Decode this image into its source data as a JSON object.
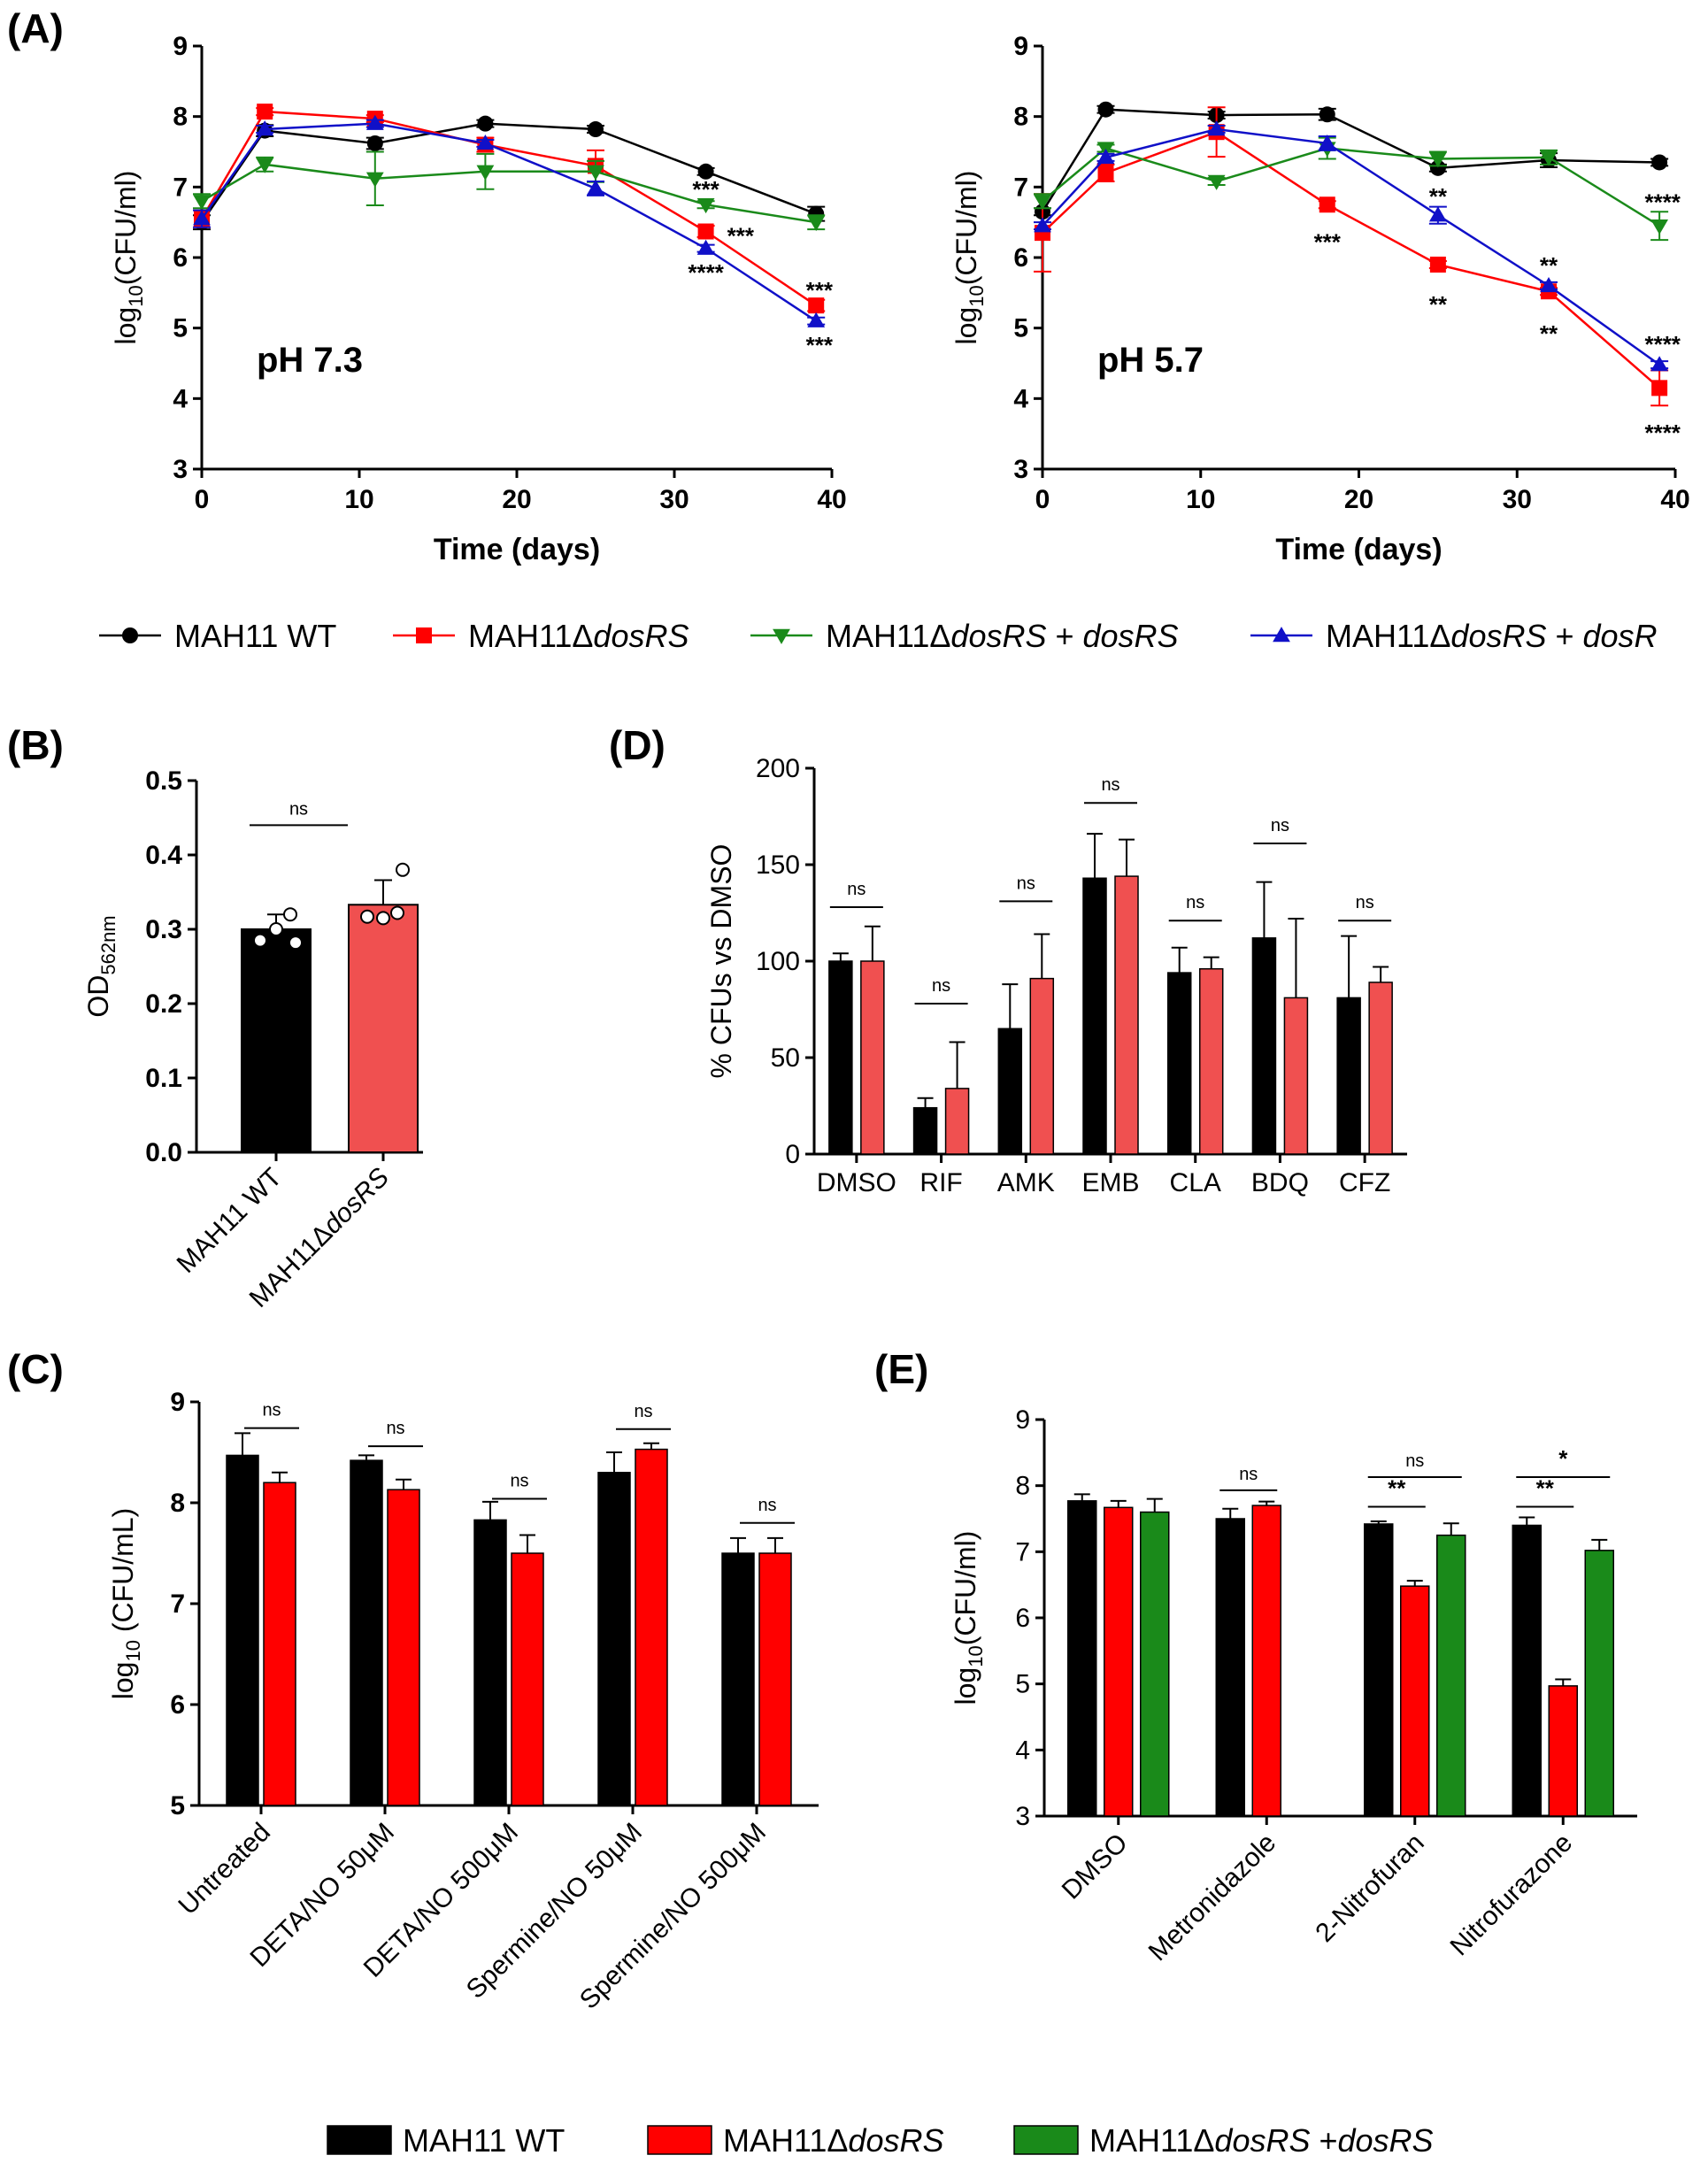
{
  "colors": {
    "wt": "#000000",
    "ko": "#ff0000",
    "kodosRS": "#1a8a1a",
    "kodosR": "#1010c8",
    "koLight": "#f05050"
  },
  "chart_data": [
    {
      "id": "A1",
      "panel_label": "(A)",
      "type": "line",
      "annotation": "pH 7.3",
      "xlabel": "Time (days)",
      "ylabel": "log10(CFU/ml)",
      "ylabel_main": "log",
      "ylabel_sub": "10",
      "ylabel_rest": "(CFU/ml)",
      "xlim": [
        0,
        40
      ],
      "ylim": [
        3,
        9
      ],
      "xticks": [
        "0",
        "10",
        "20",
        "30",
        "40"
      ],
      "yticks": [
        "3",
        "4",
        "5",
        "6",
        "7",
        "8",
        "9"
      ],
      "x": [
        0,
        4,
        11,
        18,
        25,
        32,
        39
      ],
      "series": [
        {
          "name": "MAH11 WT",
          "key": "wt",
          "marker": "circle",
          "values": [
            6.5,
            7.8,
            7.62,
            7.9,
            7.82,
            7.22,
            6.62
          ],
          "err": [
            0.1,
            0.08,
            0.08,
            0.05,
            0.05,
            0.05,
            0.1
          ]
        },
        {
          "name": "MAH11ΔdosRS",
          "key": "ko",
          "marker": "square",
          "values": [
            6.55,
            8.07,
            7.97,
            7.6,
            7.3,
            6.37,
            5.32
          ],
          "err": [
            0.12,
            0.05,
            0.05,
            0.1,
            0.22,
            0.08,
            0.08
          ]
        },
        {
          "name": "MAH11ΔdosRS + dosRS",
          "key": "kodosRS",
          "marker": "triangle-down",
          "values": [
            6.8,
            7.32,
            7.12,
            7.22,
            7.22,
            6.75,
            6.5
          ],
          "err": [
            0.1,
            0.1,
            0.38,
            0.25,
            0.15,
            0.05,
            0.1
          ]
        },
        {
          "name": "MAH11ΔdosRS + dosR",
          "key": "kodosR",
          "marker": "triangle-up",
          "values": [
            6.55,
            7.82,
            7.9,
            7.62,
            6.98,
            6.13,
            5.1
          ],
          "err": [
            0.12,
            0.05,
            0.05,
            0.05,
            0.1,
            0.05,
            0.05
          ]
        }
      ],
      "significance": [
        {
          "x": 32,
          "y": 6.98,
          "text": "***",
          "key": "kodosRS"
        },
        {
          "x": 34.2,
          "y": 6.32,
          "text": "***",
          "key": "ko"
        },
        {
          "x": 32,
          "y": 5.8,
          "text": "****",
          "key": "kodosR"
        },
        {
          "x": 39.2,
          "y": 5.55,
          "text": "***",
          "key": "ko"
        },
        {
          "x": 39.2,
          "y": 4.77,
          "text": "***",
          "key": "kodosR"
        }
      ]
    },
    {
      "id": "A2",
      "type": "line",
      "annotation": "pH 5.7",
      "xlabel": "Time (days)",
      "ylabel": "log10(CFU/ml)",
      "ylabel_main": "log",
      "ylabel_sub": "10",
      "ylabel_rest": "(CFU/ml)",
      "xlim": [
        0,
        40
      ],
      "ylim": [
        3,
        9
      ],
      "xticks": [
        "0",
        "10",
        "20",
        "30",
        "40"
      ],
      "yticks": [
        "3",
        "4",
        "5",
        "6",
        "7",
        "8",
        "9"
      ],
      "x": [
        0,
        4,
        11,
        18,
        25,
        32,
        39
      ],
      "series": [
        {
          "name": "MAH11 WT",
          "key": "wt",
          "marker": "circle",
          "values": [
            6.65,
            8.1,
            8.02,
            8.03,
            7.27,
            7.38,
            7.35
          ],
          "err": [
            0.05,
            0.05,
            0.05,
            0.08,
            0.05,
            0.1,
            0.05
          ]
        },
        {
          "name": "MAH11ΔdosRS",
          "key": "ko",
          "marker": "square",
          "values": [
            6.35,
            7.2,
            7.78,
            6.75,
            5.9,
            5.52,
            4.15
          ],
          "err": [
            0.55,
            0.12,
            0.35,
            0.05,
            0.05,
            0.05,
            0.25
          ]
        },
        {
          "name": "MAH11ΔdosRS + dosRS",
          "key": "kodosRS",
          "marker": "triangle-down",
          "values": [
            6.8,
            7.55,
            7.08,
            7.55,
            7.4,
            7.42,
            6.45
          ],
          "err": [
            0.1,
            0.05,
            0.05,
            0.15,
            0.1,
            0.1,
            0.2
          ]
        },
        {
          "name": "MAH11ΔdosRS + dosR",
          "key": "kodosR",
          "marker": "triangle-up",
          "values": [
            6.45,
            7.42,
            7.82,
            7.62,
            6.6,
            5.6,
            4.48
          ],
          "err": [
            0.05,
            0.05,
            0.05,
            0.1,
            0.12,
            0.05,
            0.05
          ]
        }
      ],
      "significance": [
        {
          "x": 25,
          "y": 6.88,
          "text": "**",
          "key": "kodosR"
        },
        {
          "x": 39.2,
          "y": 6.8,
          "text": "****",
          "key": "kodosRS"
        },
        {
          "x": 18,
          "y": 6.23,
          "text": "***",
          "key": "ko"
        },
        {
          "x": 32,
          "y": 5.9,
          "text": "**",
          "key": "kodosR"
        },
        {
          "x": 25,
          "y": 5.35,
          "text": "**",
          "key": "ko"
        },
        {
          "x": 32,
          "y": 4.93,
          "text": "**",
          "key": "ko"
        },
        {
          "x": 39.2,
          "y": 4.78,
          "text": "****",
          "key": "kodosR"
        },
        {
          "x": 39.2,
          "y": 3.53,
          "text": "****",
          "key": "ko"
        }
      ]
    },
    {
      "id": "B",
      "panel_label": "(B)",
      "type": "bar",
      "ylabel": "OD562nm",
      "ylabel_main": "OD",
      "ylabel_sub": "562nm",
      "ylim": [
        0,
        0.5
      ],
      "yticks": [
        "0.0",
        "0.1",
        "0.2",
        "0.3",
        "0.4",
        "0.5"
      ],
      "categories": [
        "MAH11 WT",
        "MAH11ΔdosRS"
      ],
      "series": [
        {
          "name": "bars",
          "values": [
            0.3,
            0.333
          ],
          "err": [
            0.02,
            0.033
          ],
          "keys": [
            "wt",
            "koLight"
          ]
        }
      ],
      "points": [
        [
          0.3,
          0.32,
          0.285,
          0.282
        ],
        [
          0.315,
          0.322,
          0.317,
          0.38
        ]
      ],
      "significance": [
        {
          "from": 0,
          "to": 1,
          "y": 0.44,
          "text": "ns"
        }
      ]
    },
    {
      "id": "D",
      "panel_label": "(D)",
      "type": "bar",
      "ylabel": "% CFUs vs DMSO",
      "ylim": [
        0,
        200
      ],
      "yticks": [
        "0",
        "50",
        "100",
        "150",
        "200"
      ],
      "categories": [
        "DMSO",
        "RIF",
        "AMK",
        "EMB",
        "CLA",
        "BDQ",
        "CFZ"
      ],
      "series": [
        {
          "name": "MAH11 WT",
          "key": "wt",
          "values": [
            100,
            24,
            65,
            143,
            94,
            112,
            81
          ],
          "err": [
            4,
            5,
            23,
            23,
            13,
            29,
            32
          ]
        },
        {
          "name": "MAH11ΔdosRS",
          "key": "koLight",
          "values": [
            100,
            34,
            91,
            144,
            96,
            81,
            89
          ],
          "err": [
            18,
            24,
            23,
            19,
            6,
            41,
            8
          ]
        }
      ],
      "significance": [
        {
          "cat": 0,
          "y": 128,
          "text": "ns"
        },
        {
          "cat": 1,
          "y": 78,
          "text": "ns"
        },
        {
          "cat": 2,
          "y": 131,
          "text": "ns"
        },
        {
          "cat": 3,
          "y": 182,
          "text": "ns"
        },
        {
          "cat": 4,
          "y": 121,
          "text": "ns"
        },
        {
          "cat": 5,
          "y": 161,
          "text": "ns"
        },
        {
          "cat": 6,
          "y": 121,
          "text": "ns"
        }
      ]
    },
    {
      "id": "C",
      "panel_label": "(C)",
      "type": "bar",
      "ylabel": "log10 (CFU/mL)",
      "ylabel_main": "log",
      "ylabel_sub": "10",
      "ylabel_rest": " (CFU/mL)",
      "ylim": [
        5,
        9
      ],
      "yticks": [
        "5",
        "6",
        "7",
        "8",
        "9"
      ],
      "categories": [
        "Untreated",
        "DETA/NO 50μM",
        "DETA/NO 500μM",
        "Spermine/NO 50μM",
        "Spermine/NO 500μM"
      ],
      "series": [
        {
          "name": "MAH11 WT",
          "key": "wt",
          "values": [
            8.47,
            8.42,
            7.83,
            8.3,
            7.5
          ],
          "err": [
            0.22,
            0.05,
            0.18,
            0.2,
            0.15
          ]
        },
        {
          "name": "MAH11ΔdosRS",
          "key": "ko",
          "values": [
            8.2,
            8.13,
            7.5,
            8.53,
            7.5
          ],
          "err": [
            0.1,
            0.1,
            0.18,
            0.06,
            0.15
          ]
        }
      ],
      "significance": [
        {
          "cat": 0,
          "y": 8.74,
          "text": "ns"
        },
        {
          "cat": 1,
          "y": 8.56,
          "text": "ns"
        },
        {
          "cat": 2,
          "y": 8.04,
          "text": "ns"
        },
        {
          "cat": 3,
          "y": 8.73,
          "text": "ns"
        },
        {
          "cat": 4,
          "y": 7.8,
          "text": "ns"
        }
      ]
    },
    {
      "id": "E",
      "panel_label": "(E)",
      "type": "bar",
      "ylabel": "log10(CFU/ml)",
      "ylabel_main": "log",
      "ylabel_sub": "10",
      "ylabel_rest": "(CFU/ml)",
      "ylim": [
        3,
        9
      ],
      "yticks": [
        "3",
        "4",
        "5",
        "6",
        "7",
        "8",
        "9"
      ],
      "categories": [
        "DMSO",
        "Metronidazole",
        "2-Nitrofuran",
        "Nitrofurazone"
      ],
      "series": [
        {
          "name": "MAH11 WT",
          "key": "wt",
          "values": [
            7.77,
            7.5,
            7.42,
            7.4
          ],
          "err": [
            0.1,
            0.15,
            0.04,
            0.12
          ]
        },
        {
          "name": "MAH11ΔdosRS",
          "key": "ko",
          "values": [
            7.67,
            7.7,
            6.48,
            4.97
          ],
          "err": [
            0.1,
            0.06,
            0.08,
            0.1
          ]
        },
        {
          "name": "MAH11ΔdosRS +dosRS",
          "key": "kodosRS",
          "values": [
            7.6,
            null,
            7.25,
            7.02
          ],
          "err": [
            0.2,
            null,
            0.18,
            0.16
          ]
        }
      ],
      "significance": [
        {
          "cat": 1,
          "from": 0,
          "to": 1,
          "y": 7.93,
          "text": "ns"
        },
        {
          "cat": 2,
          "from": 0,
          "to": 1,
          "y": 7.68,
          "text": "**"
        },
        {
          "cat": 2,
          "from": 0,
          "to": 2,
          "y": 8.13,
          "text": "ns"
        },
        {
          "cat": 3,
          "from": 0,
          "to": 1,
          "y": 7.68,
          "text": "**"
        },
        {
          "cat": 3,
          "from": 0,
          "to": 2,
          "y": 8.13,
          "text": "*"
        }
      ]
    }
  ],
  "legend_top": [
    {
      "pre": "MAH11 WT",
      "it": "",
      "post": "",
      "key": "wt",
      "marker": "circle"
    },
    {
      "pre": "MAH11Δ",
      "it": "dosRS",
      "post": "",
      "key": "ko",
      "marker": "square"
    },
    {
      "pre": "MAH11Δ",
      "it": "dosRS",
      "post": " + ",
      "it2": "dosRS",
      "key": "kodosRS",
      "marker": "triangle-down"
    },
    {
      "pre": "MAH11Δ",
      "it": "dosRS",
      "post": " + ",
      "it2": "dosR",
      "key": "kodosR",
      "marker": "triangle-up"
    }
  ],
  "legend_bottom": [
    {
      "pre": "MAH11 WT",
      "it": "",
      "post": "",
      "key": "wt"
    },
    {
      "pre": "MAH11Δ",
      "it": "dosRS",
      "post": "",
      "key": "ko"
    },
    {
      "pre": "MAH11Δ",
      "it": "dosRS",
      "post": " +",
      "it2": "dosRS",
      "key": "kodosRS"
    }
  ]
}
